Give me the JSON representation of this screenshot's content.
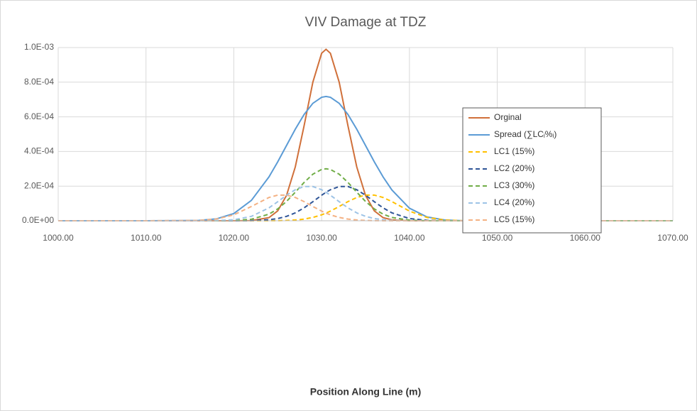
{
  "chart_data": {
    "type": "line",
    "title": "VIV Damage at TDZ",
    "x_label": "Position Along Line (m)",
    "x": [
      1000,
      1010,
      1016,
      1018,
      1020,
      1022,
      1024,
      1025,
      1026,
      1027,
      1028,
      1029,
      1030,
      1030.5,
      1031,
      1032,
      1033,
      1034,
      1035,
      1036,
      1037,
      1038,
      1040,
      1042,
      1044,
      1046,
      1050,
      1060,
      1070
    ],
    "series": [
      {
        "name": "Orginal",
        "color": "#d0703a",
        "dashed": false,
        "values": [
          0,
          0,
          0,
          0,
          0,
          1.1e-06,
          1.8e-05,
          5.7e-05,
          0.000146,
          0.000311,
          0.000548,
          0.0008,
          0.000967,
          0.00099,
          0.000967,
          0.0008,
          0.000548,
          0.000311,
          0.000146,
          5.7e-05,
          1.8e-05,
          5e-06,
          2e-07,
          0,
          0,
          0,
          0,
          0,
          0
        ]
      },
      {
        "name": "Spread (∑LCᵢ%ᵢ)",
        "color": "#5b9bd5",
        "dashed": false,
        "values": [
          0,
          0,
          1.9e-06,
          1.06e-05,
          4.16e-05,
          0.0001176,
          0.000253,
          0.0003401,
          0.0004344,
          0.0005286,
          0.0006133,
          0.000678,
          0.000713,
          0.0007178,
          0.000713,
          0.000678,
          0.0006133,
          0.0005286,
          0.0004344,
          0.0003401,
          0.000253,
          0.0001779,
          7.26e-05,
          2.2e-05,
          4.7e-06,
          7e-07,
          0,
          0,
          0
        ]
      },
      {
        "name": "LC1 (15%)",
        "color": "#ffc000",
        "dashed": true,
        "values": [
          0,
          0,
          0,
          0,
          0,
          0,
          2e-07,
          7e-07,
          1.8e-06,
          4.4e-06,
          9.6e-06,
          1.91e-05,
          3.42e-05,
          4.43e-05,
          5.58e-05,
          8.25e-05,
          0.0001106,
          0.0001344,
          0.0001482,
          0.0001482,
          0.0001344,
          0.0001106,
          5.58e-05,
          1.91e-05,
          4.4e-06,
          7e-07,
          0,
          0,
          0
        ]
      },
      {
        "name": "LC2 (20%)",
        "color": "#2f5597",
        "dashed": true,
        "values": [
          0,
          0,
          0,
          0,
          1e-07,
          9e-07,
          5.9e-06,
          1.28e-05,
          2.54e-05,
          4.56e-05,
          7.44e-05,
          0.00011,
          0.0001474,
          0.0001646,
          0.0001792,
          0.0001976,
          0.0001976,
          0.0001792,
          0.0001474,
          0.00011,
          7.44e-05,
          4.56e-05,
          1.28e-05,
          2.4e-06,
          3e-07,
          0,
          0,
          0,
          0
        ]
      },
      {
        "name": "LC3 (30%)",
        "color": "#70ad47",
        "dashed": true,
        "values": [
          0,
          0,
          0,
          1e-07,
          1.4e-06,
          8.8e-06,
          3.81e-05,
          6.84e-05,
          0.0001116,
          0.000165,
          0.0002211,
          0.0002688,
          0.0002964,
          0.0003,
          0.0002964,
          0.0002688,
          0.0002211,
          0.000165,
          0.0001116,
          6.84e-05,
          3.81e-05,
          1.92e-05,
          3.7e-06,
          5e-07,
          0,
          0,
          0,
          0,
          0
        ]
      },
      {
        "name": "LC4 (20%)",
        "color": "#9dc3e6",
        "dashed": true,
        "values": [
          0,
          0,
          1e-07,
          9e-07,
          5.9e-06,
          2.54e-05,
          7.44e-05,
          0.00011,
          0.0001474,
          0.0001792,
          0.0001976,
          0.0001976,
          0.0001792,
          0.0001646,
          0.0001474,
          0.00011,
          7.44e-05,
          4.56e-05,
          2.54e-05,
          1.28e-05,
          5.9e-06,
          2.4e-06,
          3e-07,
          0,
          0,
          0,
          0,
          0,
          0
        ]
      },
      {
        "name": "LC5 (15%)",
        "color": "#f4b183",
        "dashed": true,
        "values": [
          0,
          0,
          1.8e-06,
          9.6e-06,
          3.42e-05,
          8.25e-05,
          0.0001344,
          0.0001482,
          0.0001482,
          0.0001344,
          0.0001106,
          8.25e-05,
          5.58e-05,
          4.43e-05,
          3.42e-05,
          1.91e-05,
          9.6e-06,
          4.4e-06,
          1.8e-06,
          7e-07,
          2e-07,
          1e-07,
          0,
          0,
          0,
          0,
          0,
          0,
          0
        ]
      }
    ],
    "xlim": [
      1000,
      1070
    ],
    "xticks": [
      {
        "value": 1000,
        "label": "1000.00"
      },
      {
        "value": 1010,
        "label": "1010.00"
      },
      {
        "value": 1020,
        "label": "1020.00"
      },
      {
        "value": 1030,
        "label": "1030.00"
      },
      {
        "value": 1040,
        "label": "1040.00"
      },
      {
        "value": 1050,
        "label": "1050.00"
      },
      {
        "value": 1060,
        "label": "1060.00"
      },
      {
        "value": 1070,
        "label": "1070.00"
      }
    ],
    "ylim": [
      0,
      0.001
    ],
    "yticks": [
      {
        "value": 0,
        "label": "0.0E+00"
      },
      {
        "value": 0.0002,
        "label": "2.0E-04"
      },
      {
        "value": 0.0004,
        "label": "4.0E-04"
      },
      {
        "value": 0.0006,
        "label": "6.0E-04"
      },
      {
        "value": 0.0008,
        "label": "8.0E-04"
      },
      {
        "value": 0.001,
        "label": "1.0E-03"
      }
    ],
    "grid": true,
    "legend": "right"
  }
}
